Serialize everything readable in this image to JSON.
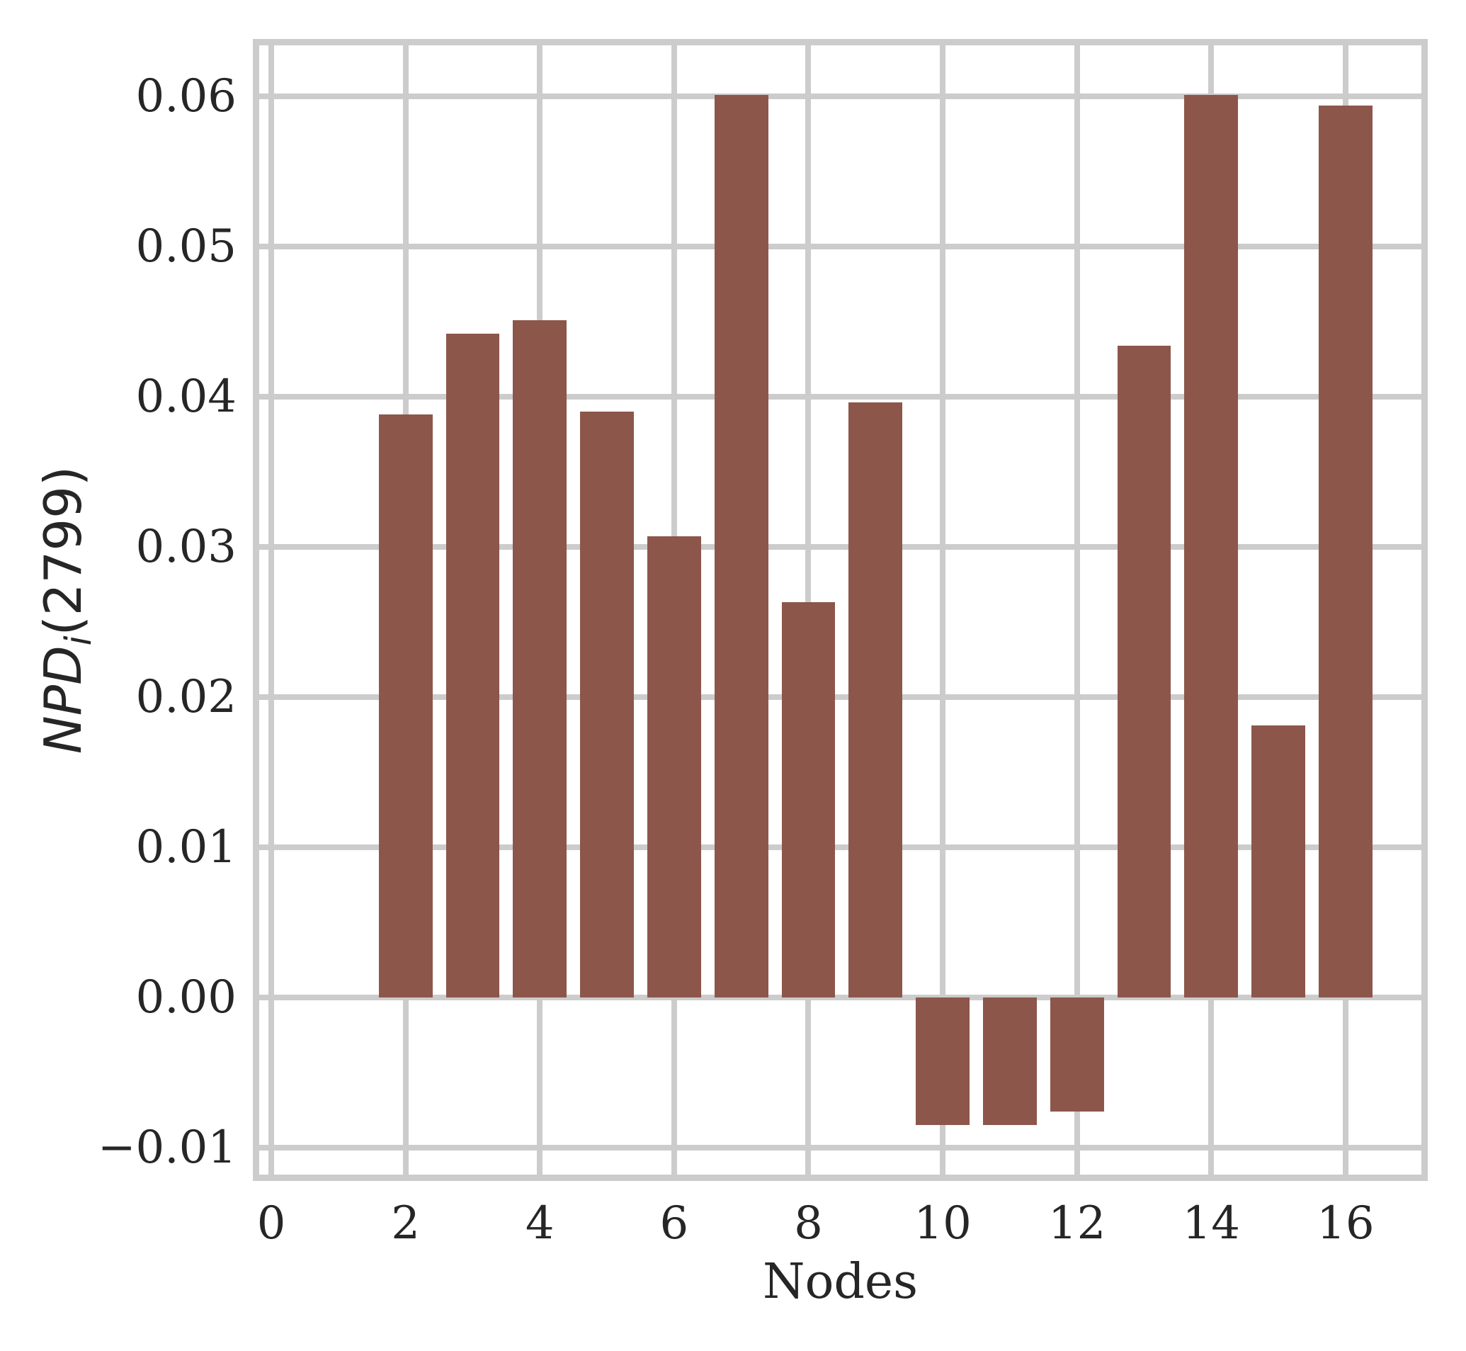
{
  "chart_data": {
    "type": "bar",
    "title": "",
    "xlabel": "Nodes",
    "ylabel": "NPD_i(2799)",
    "ylabel_parts": {
      "prefix": "NPD",
      "subscript": "i",
      "suffix": "(2799)"
    },
    "categories": [
      2,
      3,
      4,
      5,
      6,
      7,
      8,
      9,
      10,
      11,
      12,
      13,
      14,
      15,
      16
    ],
    "values": [
      0.0388,
      0.0442,
      0.0451,
      0.039,
      0.0307,
      0.0601,
      0.0263,
      0.0396,
      -0.0085,
      -0.0085,
      -0.0076,
      0.0434,
      0.0601,
      0.0181,
      0.0594
    ],
    "bar_width_units": 0.8,
    "bar_color": "#8c564b",
    "grid": true,
    "grid_color": "#cccccc",
    "spine_color": "#cccccc",
    "text_color": "#262626",
    "background_color": "#ffffff",
    "legend_position": "none",
    "xlim": [
      -0.18,
      17.13
    ],
    "ylim": [
      -0.0118,
      0.0634
    ],
    "x_ticks": [
      0,
      2,
      4,
      6,
      8,
      10,
      12,
      14,
      16
    ],
    "x_tick_labels": [
      "0",
      "2",
      "4",
      "6",
      "8",
      "10",
      "12",
      "14",
      "16"
    ],
    "y_ticks": [
      -0.01,
      0.0,
      0.01,
      0.02,
      0.03,
      0.04,
      0.05,
      0.06
    ],
    "y_tick_labels": [
      "−0.01",
      "0.00",
      "0.01",
      "0.02",
      "0.03",
      "0.04",
      "0.05",
      "0.06"
    ]
  }
}
